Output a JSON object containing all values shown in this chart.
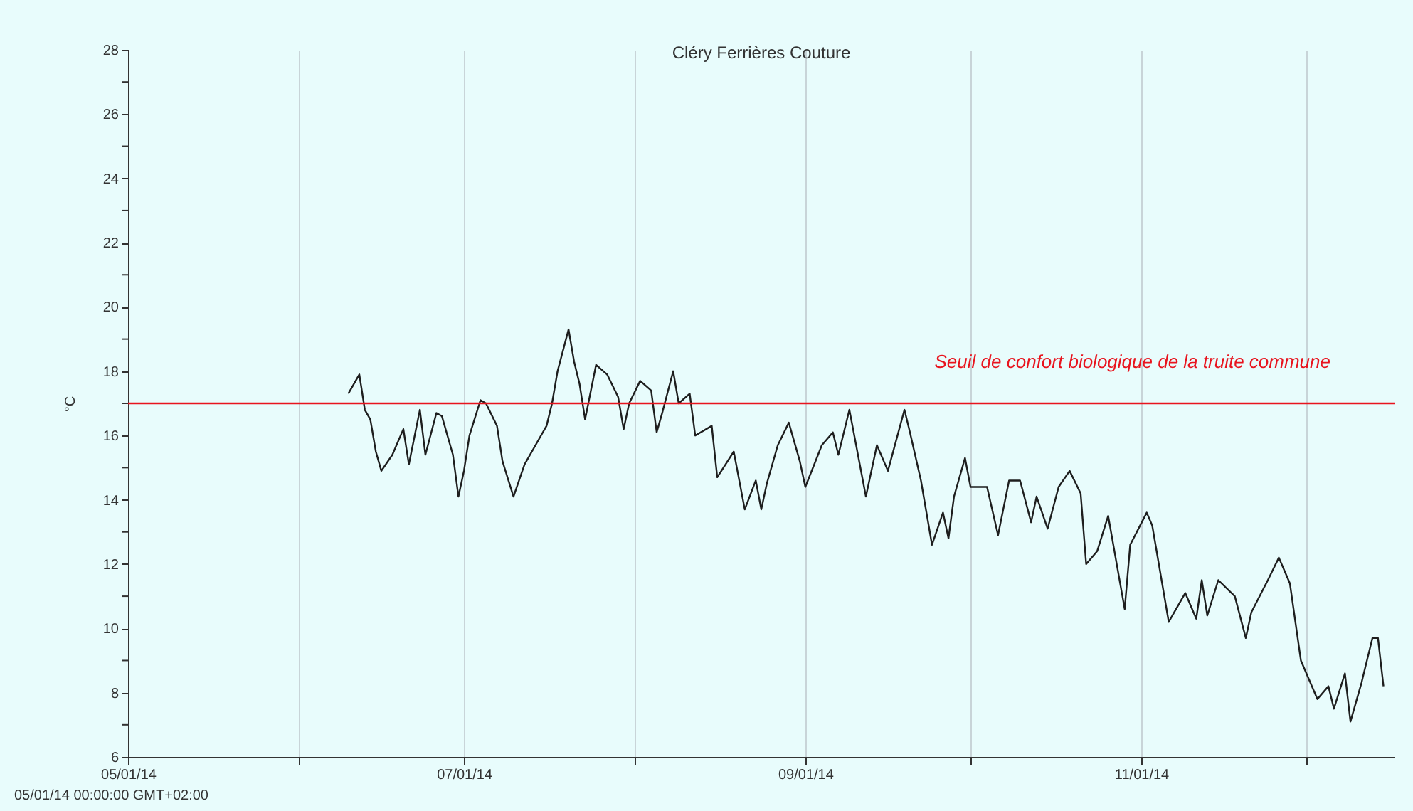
{
  "chart_data": {
    "type": "line",
    "title": "Cléry Ferrières Couture",
    "ylabel": "°C",
    "x": [
      "2014-06-10",
      "2014-06-11",
      "2014-06-12",
      "2014-06-13",
      "2014-06-14",
      "2014-06-15",
      "2014-06-16",
      "2014-06-18",
      "2014-06-20",
      "2014-06-21",
      "2014-06-23",
      "2014-06-24",
      "2014-06-26",
      "2014-06-27",
      "2014-06-29",
      "2014-06-30",
      "2014-07-01",
      "2014-07-02",
      "2014-07-04",
      "2014-07-05",
      "2014-07-07",
      "2014-07-08",
      "2014-07-10",
      "2014-07-12",
      "2014-07-14",
      "2014-07-16",
      "2014-07-17",
      "2014-07-18",
      "2014-07-20",
      "2014-07-21",
      "2014-07-22",
      "2014-07-23",
      "2014-07-25",
      "2014-07-27",
      "2014-07-29",
      "2014-07-30",
      "2014-07-31",
      "2014-08-02",
      "2014-08-04",
      "2014-08-05",
      "2014-08-06",
      "2014-08-08",
      "2014-08-09",
      "2014-08-11",
      "2014-08-12",
      "2014-08-15",
      "2014-08-16",
      "2014-08-19",
      "2014-08-21",
      "2014-08-23",
      "2014-08-24",
      "2014-08-25",
      "2014-08-27",
      "2014-08-29",
      "2014-08-31",
      "2014-09-01",
      "2014-09-04",
      "2014-09-06",
      "2014-09-07",
      "2014-09-09",
      "2014-09-12",
      "2014-09-14",
      "2014-09-16",
      "2014-09-19",
      "2014-09-20",
      "2014-09-22",
      "2014-09-24",
      "2014-09-26",
      "2014-09-27",
      "2014-09-28",
      "2014-09-30",
      "2014-10-01",
      "2014-10-04",
      "2014-10-06",
      "2014-10-08",
      "2014-10-10",
      "2014-10-12",
      "2014-10-13",
      "2014-10-15",
      "2014-10-17",
      "2014-10-19",
      "2014-10-21",
      "2014-10-22",
      "2014-10-24",
      "2014-10-26",
      "2014-10-29",
      "2014-10-30",
      "2014-11-02",
      "2014-11-03",
      "2014-11-06",
      "2014-11-07",
      "2014-11-09",
      "2014-11-11",
      "2014-11-12",
      "2014-11-13",
      "2014-11-15",
      "2014-11-18",
      "2014-11-20",
      "2014-11-21",
      "2014-11-24",
      "2014-11-26",
      "2014-11-28",
      "2014-11-30",
      "2014-12-03",
      "2014-12-05",
      "2014-12-06",
      "2014-12-08",
      "2014-12-09",
      "2014-12-11",
      "2014-12-13",
      "2014-12-14",
      "2014-12-15"
    ],
    "series": [
      {
        "color": "#1e1e1e",
        "values": [
          17.3,
          17.6,
          17.9,
          16.8,
          16.5,
          15.5,
          14.9,
          15.4,
          16.2,
          15.1,
          16.8,
          15.4,
          16.7,
          16.6,
          15.4,
          14.1,
          14.9,
          16.0,
          17.1,
          17.0,
          16.3,
          15.2,
          14.1,
          15.1,
          15.7,
          16.3,
          17.0,
          18.0,
          19.3,
          18.3,
          17.6,
          16.5,
          18.2,
          17.9,
          17.2,
          16.2,
          17.0,
          17.7,
          17.4,
          16.1,
          16.7,
          18.0,
          17.0,
          17.3,
          16.0,
          16.3,
          14.7,
          15.5,
          13.7,
          14.6,
          13.7,
          14.5,
          15.7,
          16.4,
          15.2,
          14.4,
          15.7,
          16.1,
          15.4,
          16.8,
          14.1,
          15.7,
          14.9,
          16.8,
          16.1,
          14.6,
          12.6,
          13.6,
          12.8,
          14.1,
          15.3,
          14.4,
          14.4,
          12.9,
          14.6,
          14.6,
          13.3,
          14.1,
          13.1,
          14.4,
          14.9,
          14.2,
          12.0,
          12.4,
          13.5,
          10.6,
          12.6,
          13.6,
          13.2,
          10.2,
          10.5,
          11.1,
          10.3,
          11.5,
          10.4,
          11.5,
          11.0,
          9.7,
          10.5,
          11.5,
          12.2,
          11.4,
          9.0,
          7.8,
          8.2,
          7.5,
          8.6,
          7.1,
          8.3,
          9.7,
          9.7,
          8.2
        ]
      }
    ],
    "xlim": [
      "2014-05-01",
      "2014-12-17"
    ],
    "xticks": [
      {
        "value": "2014-05-01",
        "label": "05/01/14"
      },
      {
        "value": "2014-06-01",
        "label": null
      },
      {
        "value": "2014-07-01",
        "label": "07/01/14"
      },
      {
        "value": "2014-08-01",
        "label": null
      },
      {
        "value": "2014-09-01",
        "label": "09/01/14"
      },
      {
        "value": "2014-10-01",
        "label": null
      },
      {
        "value": "2014-11-01",
        "label": "11/01/14"
      },
      {
        "value": "2014-12-01",
        "label": null
      }
    ],
    "ylim": [
      6,
      28
    ],
    "yticks": [
      6,
      {
        "value": 7,
        "label": null
      },
      8,
      {
        "value": 9,
        "label": null
      },
      10,
      {
        "value": 11,
        "label": null
      },
      12,
      {
        "value": 13,
        "label": null
      },
      14,
      {
        "value": 15,
        "label": null
      },
      16,
      {
        "value": 17,
        "label": null
      },
      18,
      {
        "value": 19,
        "label": null
      },
      20,
      {
        "value": 21,
        "label": null
      },
      22,
      {
        "value": 23,
        "label": null
      },
      24,
      {
        "value": 25,
        "label": null
      },
      26,
      {
        "value": 27,
        "label": null
      },
      28
    ],
    "grid": "x",
    "ref_lines": [
      {
        "axis": "y",
        "value": 17,
        "label": "Seuil de confort biologique de la truite commune",
        "color": "#e8141e"
      }
    ],
    "annotations": [
      "05/01/14 00:00:00 GMT+02:00"
    ]
  }
}
